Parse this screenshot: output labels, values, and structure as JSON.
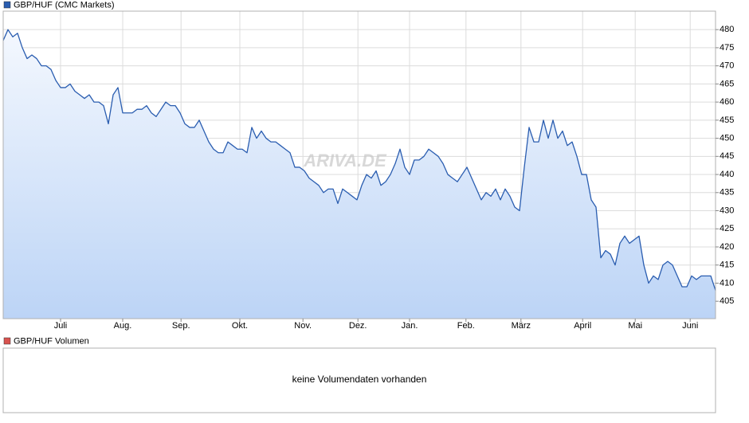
{
  "chart_data": {
    "type": "line",
    "watermark": "ARIVA.DE",
    "series": [
      {
        "name": "GBP/HUF (CMC Markets)",
        "color": "#2a5db0",
        "values": [
          477,
          480,
          478,
          479,
          475,
          472,
          473,
          472,
          470,
          470,
          469,
          466,
          464,
          464,
          465,
          463,
          462,
          461,
          462,
          460,
          460,
          459,
          454,
          462,
          464,
          457,
          457,
          457,
          458,
          458,
          459,
          457,
          456,
          458,
          460,
          459,
          459,
          457,
          454,
          453,
          453,
          455,
          452,
          449,
          447,
          446,
          446,
          449,
          448,
          447,
          447,
          446,
          453,
          450,
          452,
          450,
          449,
          449,
          448,
          447,
          446,
          442,
          442,
          441,
          439,
          438,
          437,
          435,
          436,
          436,
          432,
          436,
          435,
          434,
          433,
          437,
          440,
          439,
          441,
          437,
          438,
          440,
          443,
          447,
          442,
          440,
          444,
          444,
          445,
          447,
          446,
          445,
          443,
          440,
          439,
          438,
          440,
          442,
          439,
          436,
          433,
          435,
          434,
          436,
          433,
          436,
          434,
          431,
          430,
          442,
          453,
          449,
          449,
          455,
          450,
          455,
          450,
          452,
          448,
          449,
          445,
          440,
          440,
          433,
          431,
          417,
          419,
          418,
          415,
          421,
          423,
          421,
          422,
          423,
          415,
          410,
          412,
          411,
          415,
          416,
          415,
          412,
          409,
          409,
          412,
          411,
          412,
          412,
          412,
          408
        ]
      }
    ],
    "xlim": [
      0,
      149
    ],
    "xticks": [
      {
        "value": 12,
        "label": "Juli"
      },
      {
        "value": 25,
        "label": "Aug."
      },
      {
        "value": 37.2,
        "label": "Sep."
      },
      {
        "value": 49.5,
        "label": "Okt."
      },
      {
        "value": 62.7,
        "label": "Nov."
      },
      {
        "value": 74.2,
        "label": "Dez."
      },
      {
        "value": 85,
        "label": "Jan."
      },
      {
        "value": 96.8,
        "label": "Feb."
      },
      {
        "value": 108.3,
        "label": "März"
      },
      {
        "value": 121.2,
        "label": "April"
      },
      {
        "value": 132.2,
        "label": "Mai"
      },
      {
        "value": 143.7,
        "label": "Juni"
      }
    ],
    "ylim": [
      400.2,
      485.1
    ],
    "yticks": [
      405,
      410,
      415,
      420,
      425,
      430,
      435,
      440,
      445,
      450,
      455,
      460,
      465,
      470,
      475,
      480
    ],
    "grid": true,
    "area_fill": true
  },
  "volume_panel": {
    "title": "GBP/HUF Volumen",
    "color": "#d9534f",
    "message": "keine Volumendaten vorhanden"
  }
}
